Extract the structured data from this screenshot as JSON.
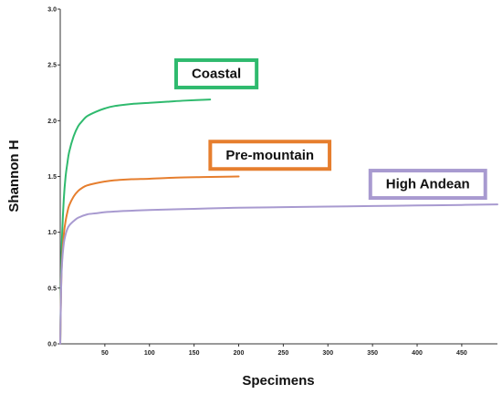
{
  "chart_data": {
    "type": "line",
    "title": "",
    "xlabel": "Specimens",
    "ylabel": "Shannon H",
    "xlim": [
      0,
      490
    ],
    "ylim": [
      0,
      3.0
    ],
    "x_ticks": [
      50,
      100,
      150,
      200,
      250,
      300,
      350,
      400,
      450
    ],
    "y_ticks": [
      0.0,
      0.5,
      1.0,
      1.5,
      2.0,
      2.5,
      3.0
    ],
    "x_tick_labels": [
      "50",
      "100",
      "150",
      "200",
      "250",
      "300",
      "350",
      "400",
      "450"
    ],
    "y_tick_labels": [
      "0.0",
      "0.5",
      "1.0",
      "1.5",
      "2.0",
      "2.5",
      "3.0"
    ],
    "grid": false,
    "series": [
      {
        "name": "Coastal",
        "color": "#2fba6e",
        "label_box": [
          175,
          2.42
        ],
        "x": [
          1,
          2,
          4,
          6,
          8,
          10,
          15,
          20,
          25,
          30,
          40,
          50,
          60,
          80,
          100,
          120,
          140,
          168
        ],
        "y": [
          0.6,
          0.95,
          1.3,
          1.5,
          1.62,
          1.72,
          1.86,
          1.95,
          2.0,
          2.04,
          2.08,
          2.11,
          2.13,
          2.15,
          2.16,
          2.17,
          2.18,
          2.19
        ]
      },
      {
        "name": "Pre-mountain",
        "color": "#e67e2e",
        "label_box": [
          235,
          1.69
        ],
        "x": [
          1,
          2,
          4,
          6,
          8,
          10,
          15,
          20,
          25,
          30,
          40,
          50,
          60,
          80,
          100,
          130,
          160,
          200
        ],
        "y": [
          0.5,
          0.75,
          0.98,
          1.1,
          1.18,
          1.24,
          1.32,
          1.37,
          1.4,
          1.42,
          1.44,
          1.455,
          1.465,
          1.475,
          1.48,
          1.49,
          1.495,
          1.5
        ]
      },
      {
        "name": "High Andean",
        "color": "#a89ad0",
        "label_box": [
          412,
          1.43
        ],
        "x": [
          1,
          2,
          4,
          6,
          8,
          10,
          15,
          20,
          30,
          40,
          50,
          70,
          100,
          150,
          200,
          250,
          300,
          350,
          400,
          450,
          490
        ],
        "y": [
          0.5,
          0.72,
          0.9,
          0.98,
          1.03,
          1.06,
          1.1,
          1.13,
          1.16,
          1.17,
          1.18,
          1.19,
          1.2,
          1.21,
          1.22,
          1.225,
          1.23,
          1.235,
          1.24,
          1.245,
          1.25
        ]
      }
    ]
  }
}
